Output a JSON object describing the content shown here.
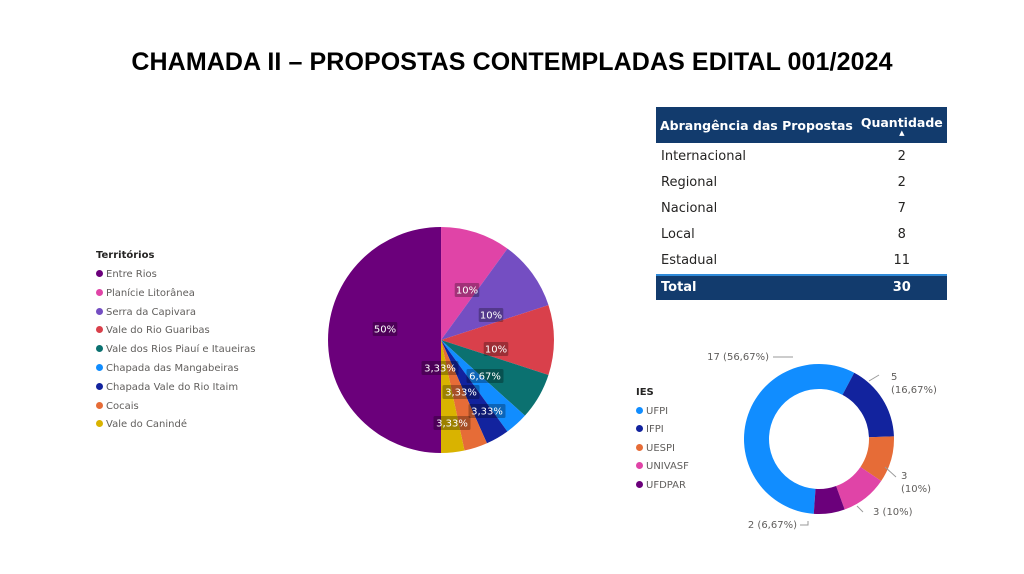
{
  "title": "CHAMADA II – PROPOSTAS CONTEMPLADAS EDITAL 001/2024",
  "table": {
    "headers": [
      "Abrangência das Propostas",
      "Quantidade"
    ],
    "rows": [
      {
        "label": "Internacional",
        "value": "2"
      },
      {
        "label": "Regional",
        "value": "2"
      },
      {
        "label": "Nacional",
        "value": "7"
      },
      {
        "label": "Local",
        "value": "8"
      },
      {
        "label": "Estadual",
        "value": "11"
      }
    ],
    "total": {
      "label": "Total",
      "value": "30"
    }
  },
  "chart_data": [
    {
      "type": "pie",
      "legend_title": "Territórios",
      "legend_position": "left",
      "slices": [
        {
          "name": "Entre Rios",
          "value": 50,
          "label": "50%",
          "color": "#6b007b"
        },
        {
          "name": "Planície Litorânea",
          "value": 10,
          "label": "10%",
          "color": "#e044a7"
        },
        {
          "name": "Serra da Capivara",
          "value": 10,
          "label": "10%",
          "color": "#744ec2"
        },
        {
          "name": "Vale do Rio Guaribas",
          "value": 10,
          "label": "10%",
          "color": "#d9404b"
        },
        {
          "name": "Vale dos Rios Piauí e Itaueiras",
          "value": 6.67,
          "label": "6,67%",
          "color": "#0b7170"
        },
        {
          "name": "Chapada das Mangabeiras",
          "value": 3.33,
          "label": "3,33%",
          "color": "#118dff"
        },
        {
          "name": "Chapada Vale do Rio Itaim",
          "value": 3.33,
          "label": "3,33%",
          "color": "#12239e"
        },
        {
          "name": "Cocais",
          "value": 3.33,
          "label": "3,33%",
          "color": "#e66c37"
        },
        {
          "name": "Vale do Canindé",
          "value": 3.33,
          "label": "3,33%",
          "color": "#d9b300"
        }
      ]
    },
    {
      "type": "donut",
      "legend_title": "IES",
      "legend_position": "left",
      "slices": [
        {
          "name": "UFPI",
          "value": 17,
          "label": "17 (56,67%)",
          "color": "#118dff"
        },
        {
          "name": "IFPI",
          "value": 5,
          "label": "5 (16,67%)",
          "color": "#12239e"
        },
        {
          "name": "UESPI",
          "value": 3,
          "label": "3 (10%)",
          "color": "#e66c37"
        },
        {
          "name": "UNIVASF",
          "value": 3,
          "label": "3 (10%)",
          "color": "#e044a7"
        },
        {
          "name": "UFDPAR",
          "value": 2,
          "label": "2 (6,67%)",
          "color": "#6b007b"
        }
      ]
    }
  ]
}
